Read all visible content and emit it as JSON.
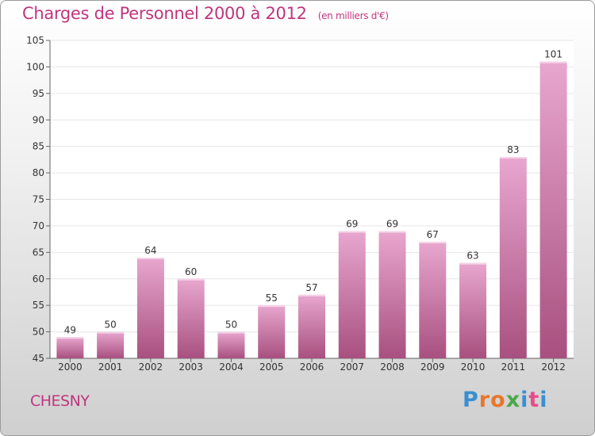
{
  "header": {
    "title": "Charges de Personnel 2000 à 2012",
    "subtitle": "(en milliers d'€)"
  },
  "footer": {
    "commune": "CHESNY",
    "logo_text": "Proxiti"
  },
  "colors": {
    "accent": "#c0357e",
    "bar_light": "#e8a7cf",
    "bar_dark": "#a8507f",
    "grid": "#e6e6e6"
  },
  "chart_data": {
    "type": "bar",
    "title": "Charges de Personnel 2000 à 2012",
    "subtitle": "(en milliers d'€)",
    "xlabel": "",
    "ylabel": "",
    "categories": [
      "2000",
      "2001",
      "2002",
      "2003",
      "2004",
      "2005",
      "2006",
      "2007",
      "2008",
      "2009",
      "2010",
      "2011",
      "2012"
    ],
    "values": [
      49,
      50,
      64,
      60,
      50,
      55,
      57,
      69,
      69,
      67,
      63,
      83,
      101
    ],
    "ylim": [
      45,
      105
    ],
    "yticks": [
      45,
      50,
      55,
      60,
      65,
      70,
      75,
      80,
      85,
      90,
      95,
      100,
      105
    ],
    "grid": true,
    "legend": "none"
  }
}
